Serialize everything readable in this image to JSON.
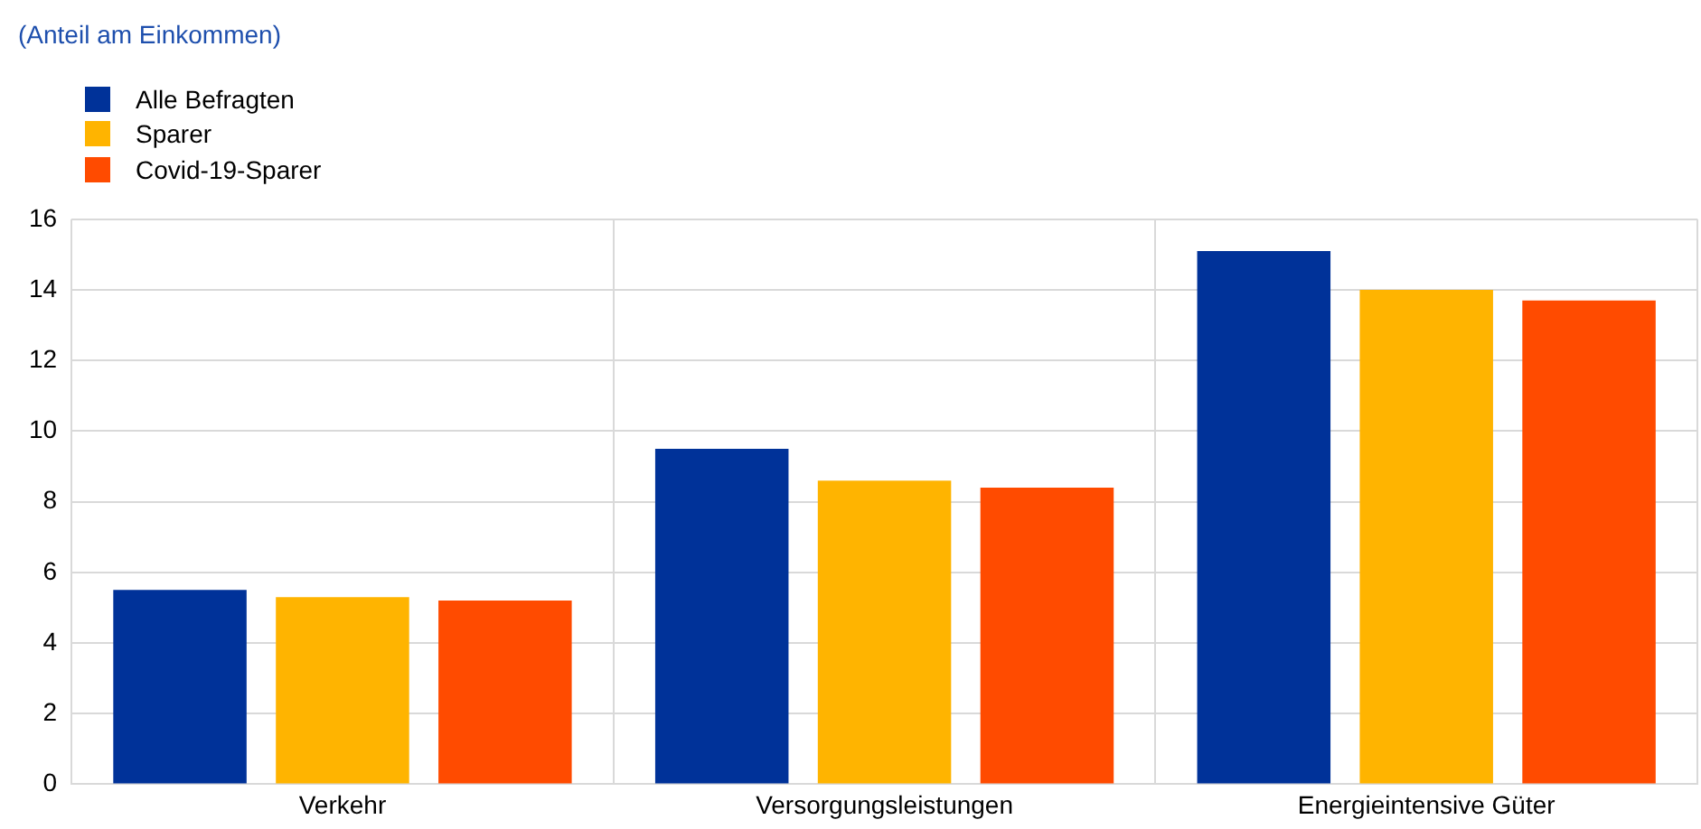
{
  "chart_data": {
    "type": "bar",
    "title": "(Anteil am Einkommen)",
    "categories": [
      "Verkehr",
      "Versorgungsleistungen",
      "Energieintensive Güter"
    ],
    "series": [
      {
        "name": "Alle Befragten",
        "color": "#003299",
        "values": [
          5.5,
          9.5,
          15.1
        ]
      },
      {
        "name": "Sparer",
        "color": "#ffb400",
        "values": [
          5.3,
          8.6,
          14.0
        ]
      },
      {
        "name": "Covid-19-Sparer",
        "color": "#ff4b00",
        "values": [
          5.2,
          8.4,
          13.7
        ]
      }
    ],
    "ylim": [
      0,
      16
    ],
    "yticks": [
      0,
      2,
      4,
      6,
      8,
      10,
      12,
      14,
      16
    ],
    "grid": true,
    "legend": "top left"
  }
}
